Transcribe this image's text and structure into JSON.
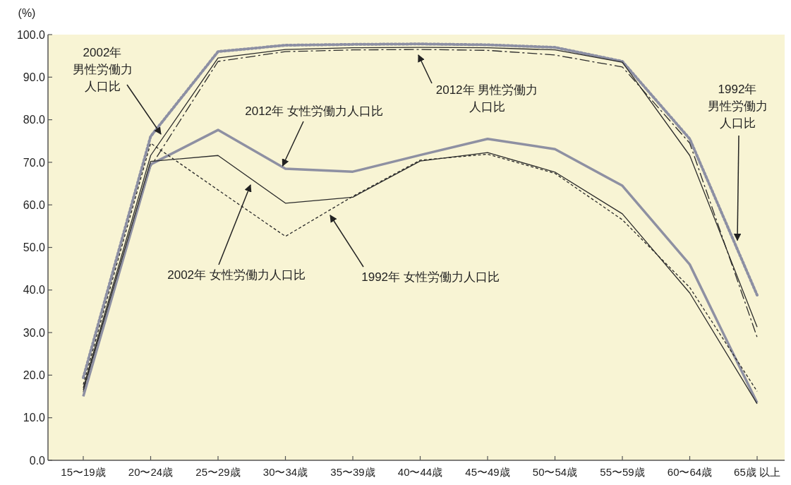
{
  "chart_data": {
    "type": "line",
    "ylabel": "(%)",
    "categories": [
      "15〜19歳",
      "20〜24歳",
      "25〜29歳",
      "30〜34歳",
      "35〜39歳",
      "40〜44歳",
      "45〜49歳",
      "50〜54歳",
      "55〜59歳",
      "60〜64歳",
      "65歳 以上"
    ],
    "series": [
      {
        "color": "#8c8fa3",
        "line_style": "dotted",
        "values": [
          19.4,
          76.1,
          96.0,
          97.5,
          97.7,
          97.8,
          97.6,
          97.0,
          93.7,
          75.5,
          38.8
        ]
      },
      {
        "color": "#2b2b2b",
        "line_style": "solid",
        "values": [
          17.0,
          71.6,
          94.5,
          96.5,
          96.9,
          97.0,
          96.9,
          96.4,
          93.5,
          71.6,
          31.3
        ]
      },
      {
        "color": "#2b2b2b",
        "line_style": "dashdot",
        "values": [
          16.0,
          69.0,
          93.7,
          96.0,
          96.4,
          96.5,
          96.3,
          95.2,
          92.4,
          74.5,
          28.9
        ]
      },
      {
        "color": "#8e90a2",
        "line_style": "solid",
        "values": [
          15.0,
          69.5,
          77.6,
          68.5,
          67.8,
          71.7,
          75.5,
          73.1,
          64.5,
          46.0,
          13.5
        ]
      },
      {
        "color": "#2b2b2b",
        "line_style": "solid",
        "values": [
          16.5,
          70.2,
          71.6,
          60.4,
          61.8,
          70.3,
          72.3,
          67.7,
          57.9,
          39.3,
          13.3
        ]
      },
      {
        "color": "#2b2b2b",
        "line_style": "dashed",
        "values": [
          17.8,
          74.5,
          63.5,
          52.6,
          62.0,
          70.5,
          71.9,
          67.4,
          56.5,
          40.6,
          16.2
        ]
      }
    ],
    "ylim": [
      0,
      100
    ],
    "yticks": [
      {
        "value": 0,
        "label": "0.0"
      },
      {
        "value": 10,
        "label": "10.0"
      },
      {
        "value": 20,
        "label": "20.0"
      },
      {
        "value": 30,
        "label": "30.0"
      },
      {
        "value": 40,
        "label": "40.0"
      },
      {
        "value": 50,
        "label": "50.0"
      },
      {
        "value": 60,
        "label": "60.0"
      },
      {
        "value": 70,
        "label": "70.0"
      },
      {
        "value": 80,
        "label": "80.0"
      },
      {
        "value": 90,
        "label": "90.0"
      },
      {
        "value": 100,
        "label": "100.0"
      }
    ],
    "annotations": [
      "2002年男性労働力人口比",
      "2012年 男性労働力人口比",
      {
        "text": "2012年 女性労働力人口比",
        "x": "30〜34歳",
        "y": 68.5
      },
      "2002年 女性労働力人口比",
      "1992年 女性労働力人口比",
      {
        "text": "1992年男性労働力人口比",
        "y": 51
      }
    ]
  }
}
